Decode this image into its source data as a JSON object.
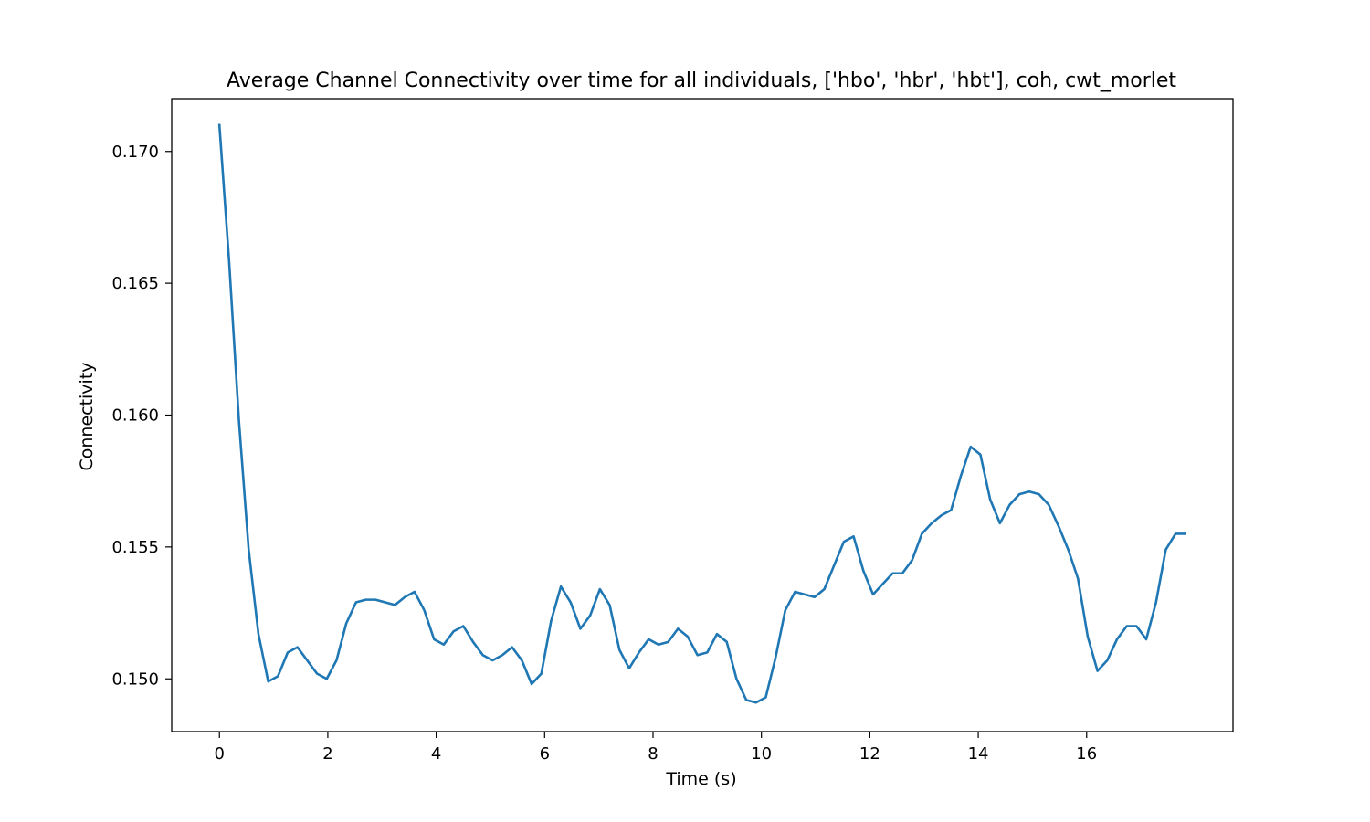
{
  "chart_data": {
    "type": "line",
    "title": "Average Channel Connectivity over time for all individuals, ['hbo', 'hbr', 'hbt'], coh, cwt_morlet",
    "xlabel": "Time (s)",
    "ylabel": "Connectivity",
    "xlim": [
      -0.88,
      18.7
    ],
    "ylim": [
      0.148,
      0.172
    ],
    "xticks": [
      0,
      2,
      4,
      6,
      8,
      10,
      12,
      14,
      16
    ],
    "xtick_labels": [
      "0",
      "2",
      "4",
      "6",
      "8",
      "10",
      "12",
      "14",
      "16"
    ],
    "yticks": [
      0.15,
      0.155,
      0.16,
      0.165,
      0.17
    ],
    "ytick_labels": [
      "0.150",
      "0.155",
      "0.160",
      "0.165",
      "0.170"
    ],
    "grid": false,
    "line_color": "#1f77b4",
    "series": [
      {
        "x": [
          0.0,
          0.18,
          0.36,
          0.54,
          0.72,
          0.9,
          1.08,
          1.26,
          1.44,
          1.62,
          1.8,
          1.98,
          2.16,
          2.34,
          2.52,
          2.7,
          2.88,
          3.06,
          3.24,
          3.42,
          3.6,
          3.78,
          3.96,
          4.14,
          4.32,
          4.5,
          4.68,
          4.86,
          5.04,
          5.22,
          5.4,
          5.58,
          5.76,
          5.94,
          6.12,
          6.3,
          6.48,
          6.66,
          6.84,
          7.02,
          7.2,
          7.38,
          7.56,
          7.74,
          7.92,
          8.1,
          8.28,
          8.46,
          8.64,
          8.82,
          9.0,
          9.18,
          9.36,
          9.54,
          9.72,
          9.9,
          10.08,
          10.26,
          10.44,
          10.62,
          10.8,
          10.98,
          11.16,
          11.34,
          11.52,
          11.7,
          11.88,
          12.06,
          12.24,
          12.42,
          12.6,
          12.78,
          12.96,
          13.14,
          13.32,
          13.5,
          13.68,
          13.86,
          14.04,
          14.22,
          14.4,
          14.58,
          14.76,
          14.94,
          15.12,
          15.3,
          15.48,
          15.66,
          15.84,
          16.02,
          16.2,
          16.38,
          16.56,
          16.74,
          16.92,
          17.1,
          17.28,
          17.46,
          17.64,
          17.82
        ],
        "y": [
          0.171,
          0.1658,
          0.1598,
          0.1549,
          0.1517,
          0.1499,
          0.1501,
          0.151,
          0.1512,
          0.1507,
          0.1502,
          0.15,
          0.1507,
          0.1521,
          0.1529,
          0.153,
          0.153,
          0.1529,
          0.1528,
          0.1531,
          0.1533,
          0.1526,
          0.1515,
          0.1513,
          0.1518,
          0.152,
          0.1514,
          0.1509,
          0.1507,
          0.1509,
          0.1512,
          0.1507,
          0.1498,
          0.1502,
          0.1522,
          0.1535,
          0.1529,
          0.1519,
          0.1524,
          0.1534,
          0.1528,
          0.1511,
          0.1504,
          0.151,
          0.1515,
          0.1513,
          0.1514,
          0.1519,
          0.1516,
          0.1509,
          0.151,
          0.1517,
          0.1514,
          0.15,
          0.1492,
          0.1491,
          0.1493,
          0.1508,
          0.1526,
          0.1533,
          0.1532,
          0.1531,
          0.1534,
          0.1543,
          0.1552,
          0.1554,
          0.1541,
          0.1532,
          0.1536,
          0.154,
          0.154,
          0.1545,
          0.1555,
          0.1559,
          0.1562,
          0.1564,
          0.1577,
          0.1588,
          0.1585,
          0.1568,
          0.1559,
          0.1566,
          0.157,
          0.1571,
          0.157,
          0.1566,
          0.1558,
          0.1549,
          0.1538,
          0.1516,
          0.1503,
          0.1507,
          0.1515,
          0.152,
          0.152,
          0.1515,
          0.1529,
          0.1549,
          0.1555,
          0.1555
        ]
      }
    ]
  }
}
